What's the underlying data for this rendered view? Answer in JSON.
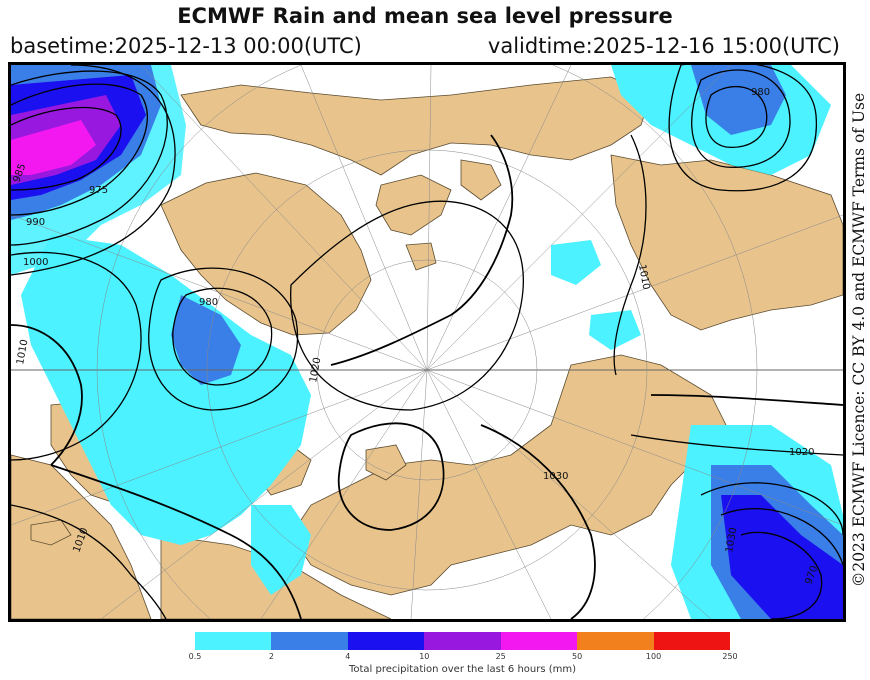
{
  "header": {
    "title": "ECMWF Rain and mean sea level pressure",
    "basetime": "basetime:2025-12-13 00:00(UTC)",
    "validtime": "validtime:2025-12-16 15:00(UTC)"
  },
  "license": "©2023 ECMWF Licence: CC BY 4.0 and ECMWF Terms of Use",
  "map": {
    "isobar_labels": [
      "985",
      "975",
      "990",
      "1000",
      "980",
      "1010",
      "1020",
      "1020",
      "1010",
      "1030",
      "980",
      "970",
      "1030",
      "1010"
    ],
    "colors": {
      "land": "#e8c48c",
      "sea": "#ffffff",
      "isobar": "#000000"
    }
  },
  "legend": {
    "label": "Total precipitation over the last 6 hours (mm)",
    "ticks": [
      "0.5",
      "2",
      "4",
      "10",
      "25",
      "50",
      "100",
      "250"
    ],
    "colors": [
      "#4cf2ff",
      "#3a7ee8",
      "#1a10f0",
      "#9818e0",
      "#f418f0",
      "#f2801c",
      "#ee1414"
    ]
  }
}
